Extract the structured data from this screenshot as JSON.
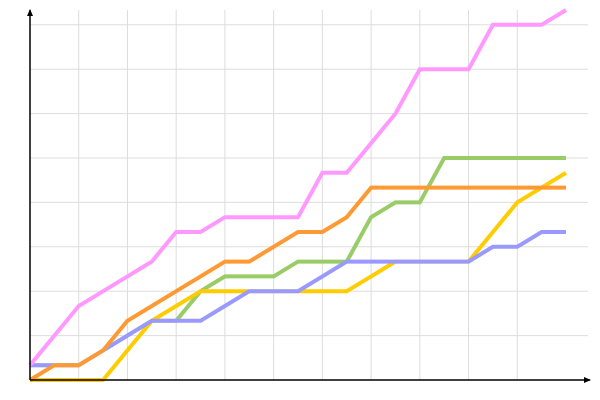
{
  "chart_data": {
    "type": "line",
    "title": "",
    "xlabel": "",
    "ylabel": "",
    "x": [
      0,
      1,
      2,
      3,
      4,
      5,
      6,
      7,
      8,
      9,
      10,
      11,
      12,
      13,
      14,
      15,
      16,
      17,
      18,
      19,
      20,
      21,
      22
    ],
    "xlim": [
      0,
      22
    ],
    "ylim": [
      0,
      25
    ],
    "grid": true,
    "x_grid_every": 2,
    "y_grid_every": 3,
    "tick_labels_shown": false,
    "legend": "none",
    "series": [
      {
        "color": "#99cc66",
        "values": [
          1,
          1,
          1,
          2,
          3,
          4,
          4,
          6,
          7,
          7,
          7,
          8,
          8,
          8,
          11,
          12,
          12,
          15,
          15,
          15,
          15,
          15,
          15
        ]
      },
      {
        "color": "#ffcc00",
        "values": [
          0,
          0,
          0,
          0,
          2,
          4,
          5,
          6,
          6,
          6,
          6,
          6,
          6,
          6,
          7,
          8,
          8,
          8,
          8,
          10,
          12,
          13,
          14
        ]
      },
      {
        "color": "#9999ff",
        "values": [
          1,
          1,
          1,
          2,
          3,
          4,
          4,
          4,
          5,
          6,
          6,
          6,
          7,
          8,
          8,
          8,
          8,
          8,
          8,
          9,
          9,
          10,
          10
        ]
      },
      {
        "color": "#ff9933",
        "values": [
          0,
          1,
          1,
          2,
          4,
          5,
          6,
          7,
          8,
          8,
          9,
          10,
          10,
          11,
          13,
          13,
          13,
          13,
          13,
          13,
          13,
          13,
          13
        ]
      },
      {
        "color": "#ff99ff",
        "values": [
          1,
          3,
          5,
          6,
          7,
          8,
          10,
          10,
          11,
          11,
          11,
          11,
          14,
          14,
          16,
          18,
          21,
          21,
          21,
          24,
          24,
          24,
          25
        ]
      }
    ]
  }
}
